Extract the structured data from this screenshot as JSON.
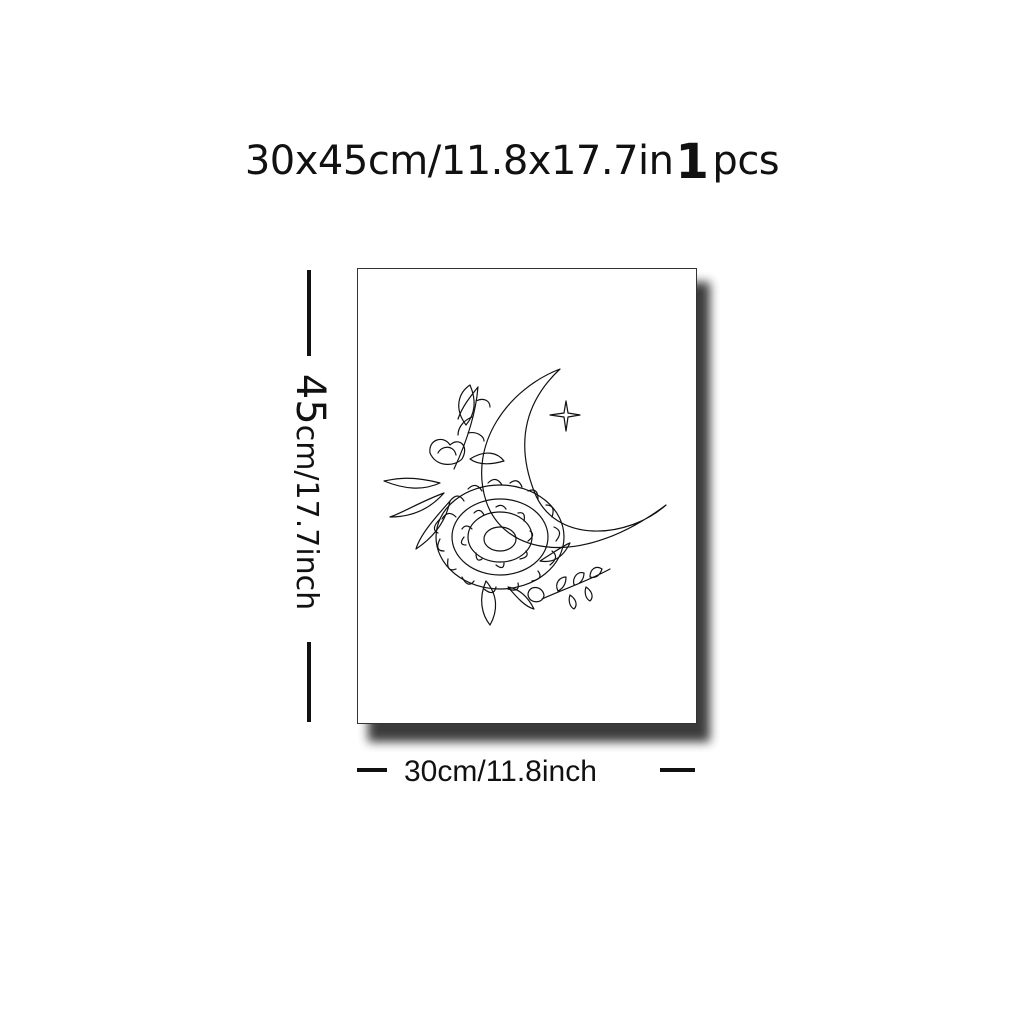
{
  "title": {
    "size_text": "30x45cm/11.8x17.7in",
    "quantity": "1",
    "unit": "pcs"
  },
  "dimensions": {
    "height_number": "45",
    "height_text": "cm/17.7inch",
    "width_text": "30cm/11.8inch"
  },
  "artwork": {
    "subject": "crescent moon with chrysanthemum, peony and leaves, four-point star",
    "line_color": "#111111",
    "background_color": "#ffffff"
  }
}
